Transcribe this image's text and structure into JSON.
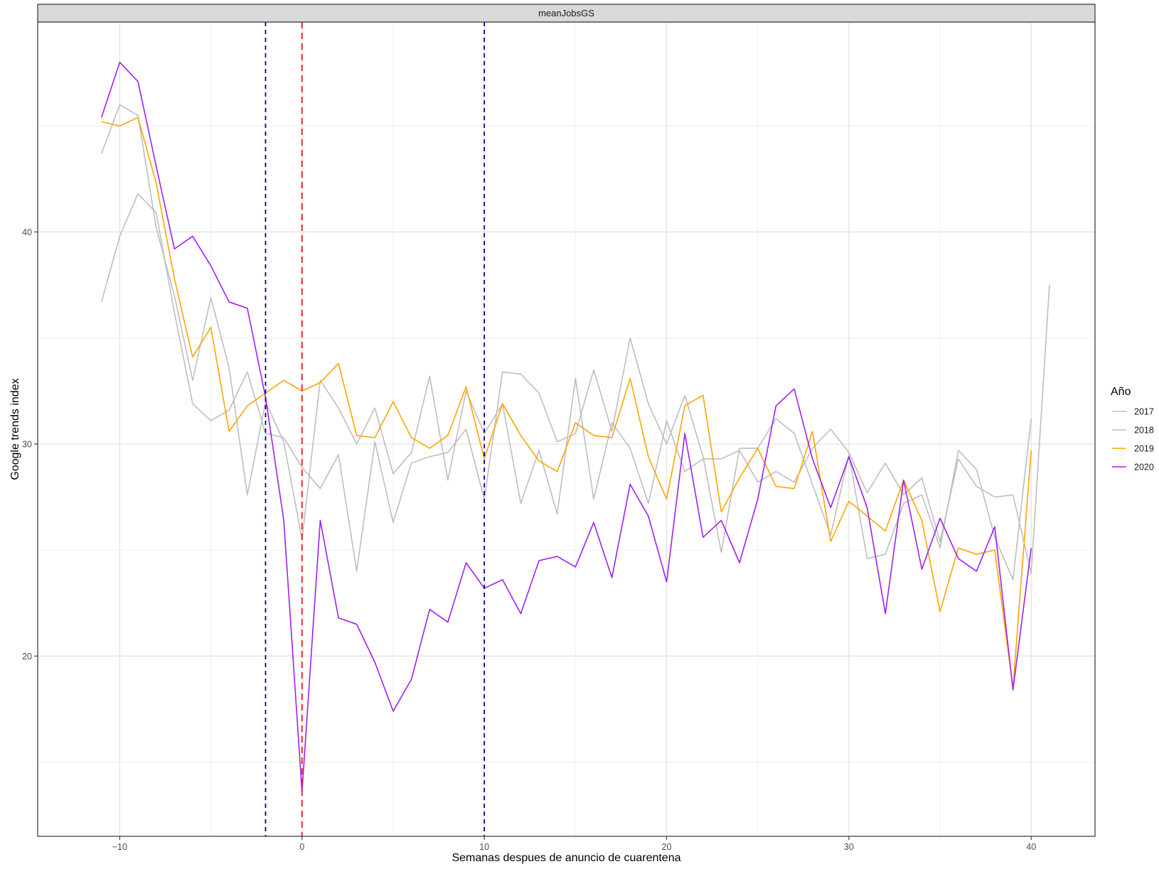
{
  "chart_data": {
    "type": "line",
    "facet_label": "meanJobsGS",
    "xlabel": "Semanas despues de anuncio de cuarentena",
    "ylabel": "Google trends index",
    "xlim": [
      -14.5,
      43.5
    ],
    "ylim": [
      11.5,
      49.9
    ],
    "x_ticks": [
      -10,
      0,
      10,
      20,
      30,
      40
    ],
    "x_tick_labels": [
      "−10",
      "0",
      "10",
      "20",
      "30",
      "40"
    ],
    "y_ticks": [
      20,
      30,
      40
    ],
    "y_tick_labels": [
      "20",
      "30",
      "40"
    ],
    "x_minor_grid": [
      -5,
      5,
      15,
      25,
      35
    ],
    "y_minor_grid": [
      15,
      25,
      35,
      45
    ],
    "grid": true,
    "legend": {
      "title": "Año",
      "position": "right",
      "entries": [
        "2017",
        "2018",
        "2019",
        "2020"
      ]
    },
    "vlines": [
      {
        "x": -2,
        "color": "#00008b",
        "dash": "dashed"
      },
      {
        "x": 0,
        "color": "#e8141b",
        "dash": "dashed"
      },
      {
        "x": 10,
        "color": "#00008b",
        "dash": "dashed"
      }
    ],
    "x": [
      -11,
      -10,
      -9,
      -8,
      -7,
      -6,
      -5,
      -4,
      -3,
      -2,
      -1,
      0,
      1,
      2,
      3,
      4,
      5,
      6,
      7,
      8,
      9,
      10,
      11,
      12,
      13,
      14,
      15,
      16,
      17,
      18,
      19,
      20,
      21,
      22,
      23,
      24,
      25,
      26,
      27,
      28,
      29,
      30,
      31,
      32,
      33,
      34,
      35,
      36,
      37,
      38,
      39,
      40,
      41
    ],
    "series": [
      {
        "name": "2017",
        "color": "#bebebe",
        "values": [
          36.7,
          39.8,
          41.8,
          40.9,
          36.2,
          31.9,
          31.1,
          31.6,
          33.4,
          30.5,
          30.3,
          28.9,
          27.9,
          29.5,
          24.0,
          30.1,
          26.3,
          29.1,
          29.4,
          29.6,
          30.7,
          27.4,
          33.4,
          33.3,
          32.4,
          30.1,
          30.5,
          33.5,
          30.6,
          35.0,
          31.9,
          30.0,
          32.3,
          29.4,
          24.9,
          29.8,
          29.8,
          31.2,
          30.5,
          28.1,
          25.7,
          29.5,
          24.6,
          24.8,
          27.2,
          27.6,
          25.1,
          29.7,
          28.8,
          25.6,
          23.6,
          31.2,
          null
        ]
      },
      {
        "name": "2018",
        "color": "#bebebe",
        "values": [
          43.7,
          46.0,
          45.5,
          40.2,
          37.0,
          33.0,
          36.9,
          33.6,
          27.6,
          32.0,
          30.1,
          25.5,
          33.0,
          31.7,
          30.0,
          31.7,
          28.6,
          29.6,
          33.2,
          28.3,
          32.5,
          30.5,
          31.9,
          27.2,
          29.7,
          26.7,
          33.1,
          27.4,
          31.0,
          29.8,
          27.2,
          31.1,
          28.7,
          29.3,
          29.3,
          29.7,
          28.2,
          28.7,
          28.2,
          29.8,
          30.7,
          29.6,
          27.7,
          29.1,
          27.6,
          28.4,
          25.4,
          29.3,
          28.0,
          27.5,
          27.6,
          23.9,
          37.5
        ]
      },
      {
        "name": "2019",
        "color": "#ffa500",
        "values": [
          45.2,
          45.0,
          45.4,
          42.3,
          37.8,
          34.1,
          35.5,
          30.6,
          31.8,
          32.4,
          33.0,
          32.5,
          32.9,
          33.8,
          30.4,
          30.3,
          32.0,
          30.3,
          29.8,
          30.4,
          32.7,
          29.3,
          31.9,
          30.4,
          29.2,
          28.7,
          31.0,
          30.4,
          30.3,
          33.1,
          29.4,
          27.4,
          31.8,
          32.3,
          26.8,
          28.4,
          29.8,
          28.0,
          27.9,
          30.6,
          25.4,
          27.3,
          26.6,
          25.9,
          28.3,
          26.4,
          22.1,
          25.1,
          24.8,
          25.0,
          18.5,
          29.7,
          null
        ]
      },
      {
        "name": "2020",
        "color": "#a020f0",
        "values": [
          45.4,
          48.0,
          47.1,
          43.1,
          39.2,
          39.8,
          38.4,
          36.7,
          36.4,
          32.2,
          26.4,
          13.6,
          26.4,
          21.8,
          21.5,
          19.7,
          17.4,
          18.9,
          22.2,
          21.6,
          24.4,
          23.2,
          23.6,
          22.0,
          24.5,
          24.7,
          24.2,
          26.3,
          23.7,
          28.1,
          26.6,
          23.5,
          30.5,
          25.6,
          26.4,
          24.4,
          27.4,
          31.8,
          32.6,
          29.3,
          27.0,
          29.4,
          27.0,
          22.0,
          28.3,
          24.1,
          26.5,
          24.6,
          24.0,
          26.1,
          18.4,
          25.1,
          null
        ]
      }
    ]
  }
}
